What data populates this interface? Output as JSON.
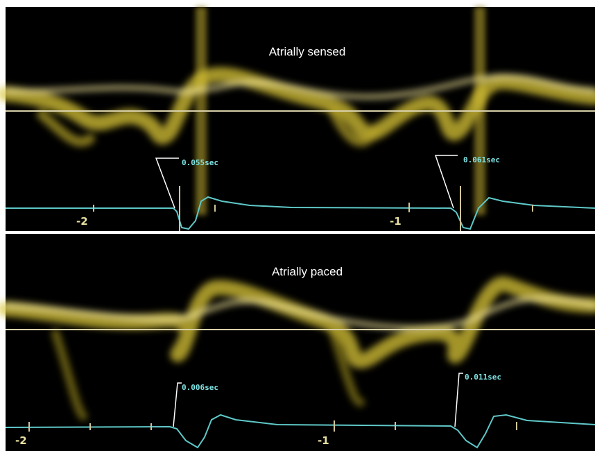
{
  "panels": [
    {
      "title": "Atrially sensed",
      "annotations": [
        "0.055sec",
        "0.061sec"
      ],
      "axis_labels": [
        "-2",
        "-1"
      ]
    },
    {
      "title": "Atrially paced",
      "annotations": [
        "0.006sec",
        "0.011sec"
      ],
      "axis_labels": [
        "-2",
        "-1"
      ]
    }
  ]
}
